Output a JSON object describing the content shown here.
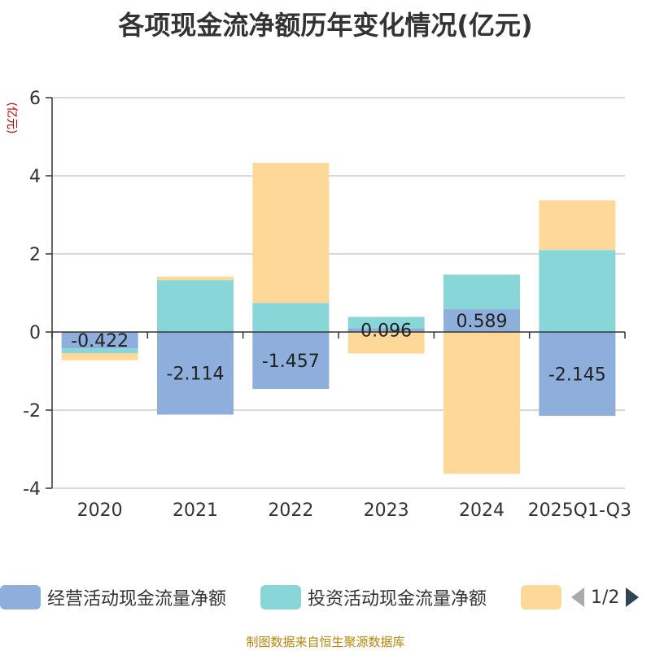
{
  "title": "各项现金流净额历年变化情况(亿元)",
  "source": "制图数据来自恒生聚源数据库",
  "pager": {
    "text": "1/2"
  },
  "chart_data": {
    "type": "bar",
    "stacked": true,
    "ylabel": "(亿元)",
    "ylim": [
      -4,
      6
    ],
    "yticks": [
      -4,
      -2,
      0,
      2,
      4,
      6
    ],
    "grid": true,
    "legend_position": "bottom",
    "categories": [
      "2020",
      "2021",
      "2022",
      "2023",
      "2024",
      "2025Q1-Q3"
    ],
    "series": [
      {
        "name": "经营活动现金流量净额",
        "color": "#8eaedb",
        "values": [
          -0.422,
          -2.114,
          -1.457,
          0.096,
          0.589,
          -2.145
        ],
        "labels": [
          "-0.422",
          "-2.114",
          "-1.457",
          "0.096",
          "0.589",
          "-2.145"
        ]
      },
      {
        "name": "投资活动现金流量净额",
        "color": "#88d6d8",
        "values": [
          -0.12,
          1.33,
          0.74,
          0.29,
          0.88,
          2.1
        ]
      },
      {
        "name": "",
        "color": "#fed898",
        "values": [
          -0.18,
          0.09,
          3.59,
          -0.55,
          -3.63,
          1.27
        ]
      }
    ]
  }
}
